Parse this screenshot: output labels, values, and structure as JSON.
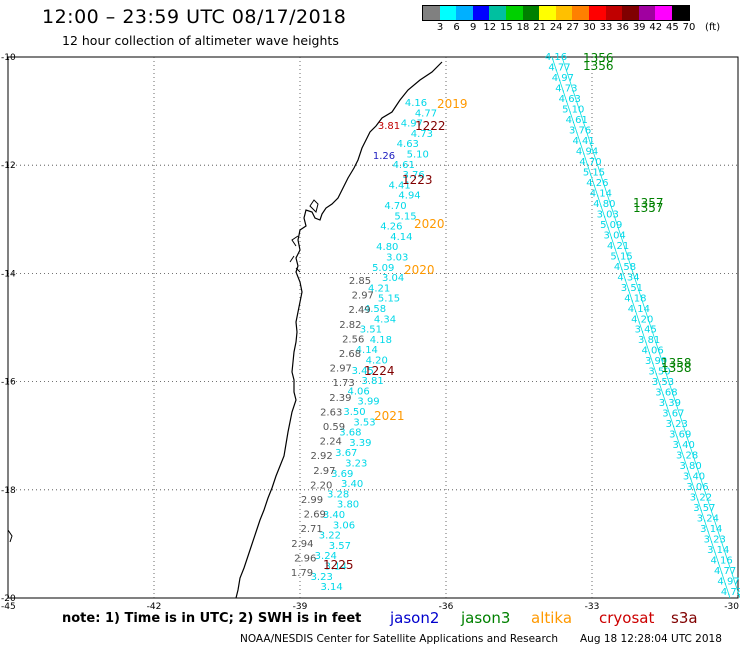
{
  "header": {
    "title": "12:00 – 23:59 UTC 08/17/2018",
    "subtitle": "12 hour collection of altimeter wave heights"
  },
  "colorbar": {
    "colors": [
      "#808080",
      "#00ffff",
      "#00b0ff",
      "#0000ff",
      "#00c0a0",
      "#00d000",
      "#008000",
      "#ffff00",
      "#ffc000",
      "#ff8000",
      "#ff0000",
      "#c00000",
      "#800000",
      "#a000a0",
      "#ff00ff",
      "#000000"
    ],
    "labels": [
      "3",
      "6",
      "9",
      "12",
      "15",
      "18",
      "21",
      "24",
      "27",
      "30",
      "33",
      "36",
      "39",
      "42",
      "45",
      "70"
    ],
    "unit": "(ft)"
  },
  "axes": {
    "lat_labels": [
      "-10",
      "-12",
      "-14",
      "-16",
      "-18",
      "-20"
    ],
    "lon_labels": [
      "-45",
      "-42",
      "-39",
      "-36",
      "-33",
      "-30"
    ]
  },
  "passes": [
    {
      "label": "1356",
      "color": "#008000"
    },
    {
      "label": "1356",
      "color": "#008000"
    },
    {
      "label": "1357",
      "color": "#008000"
    },
    {
      "label": "1357",
      "color": "#008000"
    },
    {
      "label": "1358",
      "color": "#008000"
    },
    {
      "label": "1358",
      "color": "#008000"
    },
    {
      "label": "2019",
      "color": "#ff9900"
    },
    {
      "label": "2020",
      "color": "#ff9900"
    },
    {
      "label": "2020",
      "color": "#ff9900"
    },
    {
      "label": "2021",
      "color": "#ff9900"
    },
    {
      "label": "1222",
      "color": "#800000"
    },
    {
      "label": "1223",
      "color": "#800000"
    },
    {
      "label": "1224",
      "color": "#800000"
    },
    {
      "label": "1225",
      "color": "#800000"
    }
  ],
  "swh_cyan": [
    "4.16",
    "4.77",
    "4.97",
    "4.73",
    "4.63",
    "5.10",
    "4.61",
    "3.76",
    "4.41",
    "4.94",
    "4.70",
    "5.15",
    "4.26",
    "4.14",
    "4.80",
    "3.03",
    "5.09",
    "3.04",
    "4.21",
    "5.15",
    "4.58",
    "4.34",
    "3.51",
    "4.18",
    "4.14",
    "4.20",
    "3.45",
    "3.81",
    "4.06",
    "3.99",
    "3.50",
    "3.53",
    "3.68",
    "3.39",
    "3.67",
    "3.23",
    "3.69",
    "3.40",
    "3.28",
    "3.80",
    "3.40",
    "3.06",
    "3.22",
    "3.57",
    "3.24",
    "3.14",
    "3.23",
    "3.14"
  ],
  "swh_gray": [
    "2.85",
    "2.97",
    "2.49",
    "2.82",
    "2.56",
    "2.68",
    "2.97",
    "1.73",
    "2.39",
    "2.63",
    "0.59",
    "2.24",
    "2.92",
    "2.97",
    "2.20",
    "2.99",
    "2.69",
    "2.71",
    "2.94",
    "2.96",
    "1.79"
  ],
  "swh_dark": [
    "1.26",
    "3.81"
  ],
  "footer": {
    "note": "note: 1) Time is in UTC; 2) SWH is in feet",
    "legend": [
      {
        "label": "jason2",
        "color": "#0000cc"
      },
      {
        "label": "jason3",
        "color": "#008000"
      },
      {
        "label": "altika",
        "color": "#ff9900"
      },
      {
        "label": "cryosat",
        "color": "#cc0000"
      },
      {
        "label": "s3a",
        "color": "#800000"
      }
    ],
    "credit": "NOAA/NESDIS Center for Satellite Applications and Research",
    "generated": "Aug 18 12:28:04 UTC 2018"
  }
}
